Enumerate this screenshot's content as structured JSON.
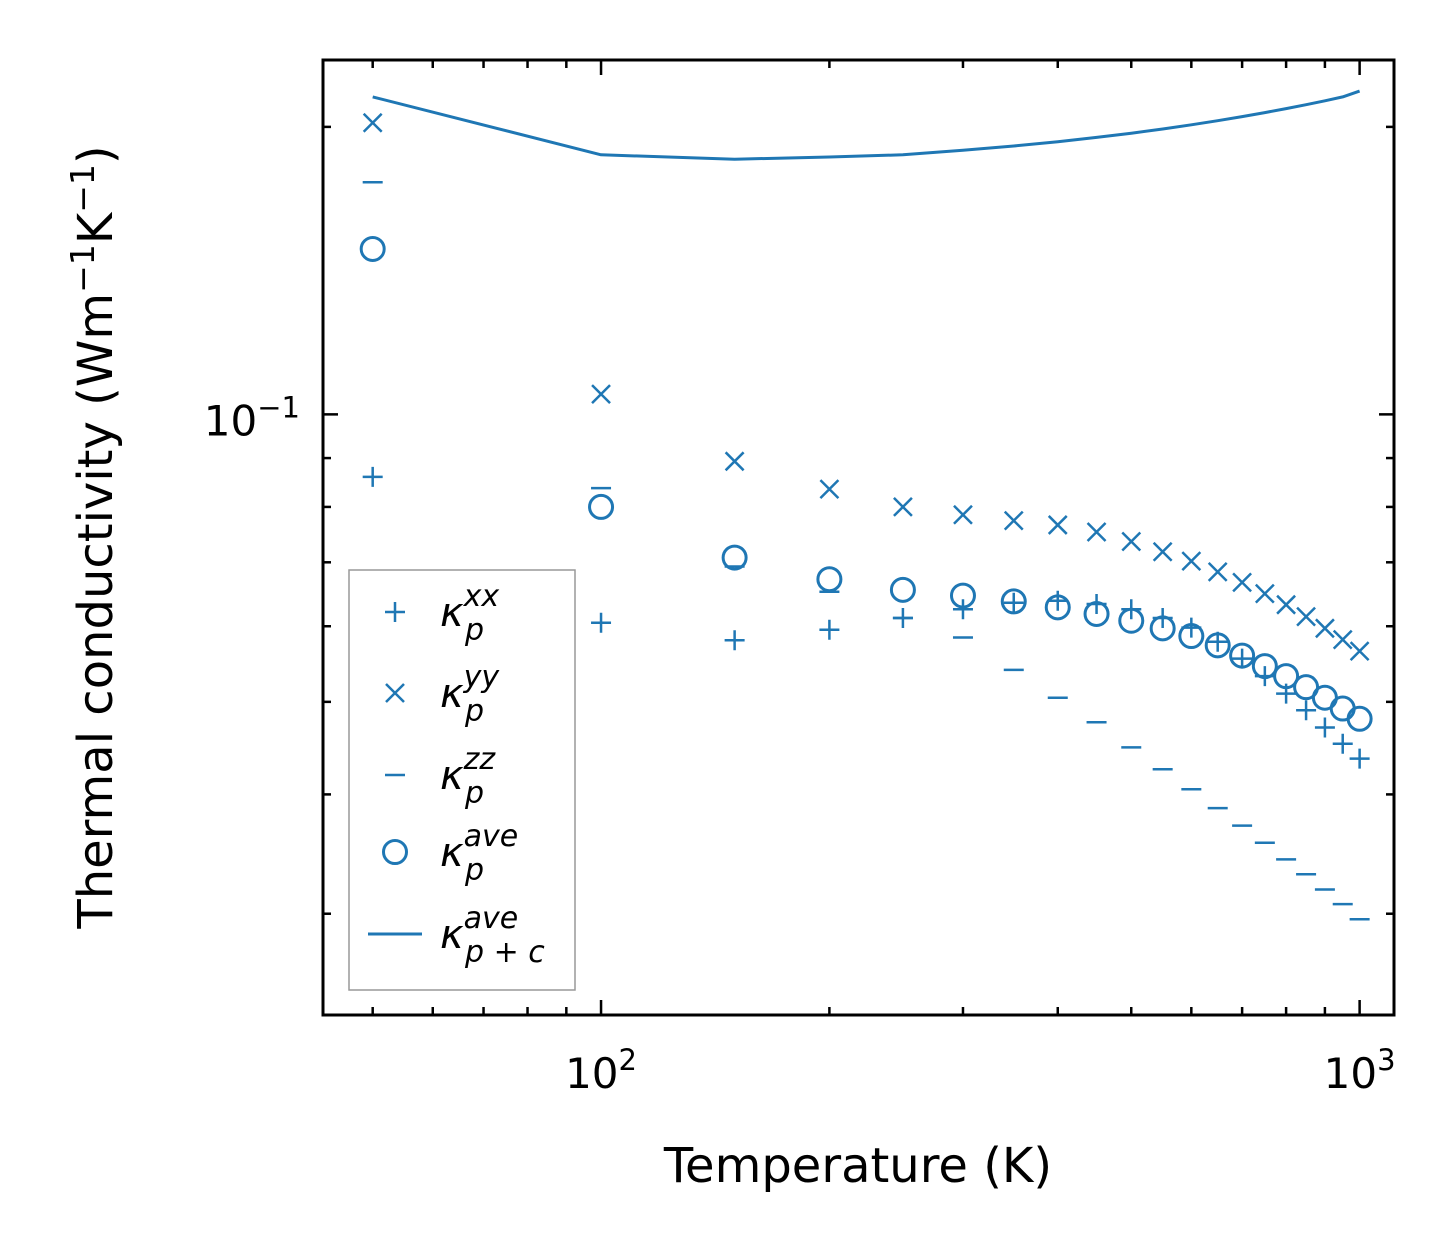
{
  "chart_data": {
    "type": "scatter",
    "title": "",
    "xlabel": "Temperature (K)",
    "ylabel_main": "Thermal conductivity (Wm",
    "ylabel_unit_w_exp": "−1",
    "ylabel_unit_k": "K",
    "ylabel_unit_k_exp": "−1",
    "ylabel_close": ")",
    "xscale": "log",
    "yscale": "log",
    "xlim": [
      43,
      1110
    ],
    "ylim": [
      0.0235,
      0.235
    ],
    "xticks": [
      {
        "value": 100,
        "base": "10",
        "exp": "2"
      },
      {
        "value": 1000,
        "base": "10",
        "exp": "3"
      }
    ],
    "yticks": [
      {
        "value": 0.1,
        "base": "10",
        "exp": "−1"
      }
    ],
    "grid": false,
    "legend_position": "lower-left",
    "color": "#1f77b4",
    "series": [
      {
        "name": "kxx",
        "label_base": "κ",
        "label_sub": "p",
        "label_sup": "xx",
        "marker": "plus",
        "x": [
          50,
          100,
          150,
          200,
          250,
          300,
          350,
          400,
          450,
          500,
          550,
          600,
          650,
          700,
          750,
          800,
          850,
          900,
          950,
          1000
        ],
        "y": [
          0.086,
          0.0605,
          0.058,
          0.0595,
          0.0612,
          0.0625,
          0.0635,
          0.0638,
          0.0633,
          0.0625,
          0.0612,
          0.0598,
          0.0578,
          0.0555,
          0.0532,
          0.051,
          0.049,
          0.047,
          0.0452,
          0.0436
        ]
      },
      {
        "name": "kyy",
        "label_base": "κ",
        "label_sub": "p",
        "label_sup": "yy",
        "marker": "x",
        "x": [
          50,
          100,
          150,
          200,
          250,
          300,
          350,
          400,
          450,
          500,
          550,
          600,
          650,
          700,
          750,
          800,
          850,
          900,
          950,
          1000
        ],
        "y": [
          0.202,
          0.105,
          0.0893,
          0.0835,
          0.08,
          0.0785,
          0.0774,
          0.0766,
          0.0753,
          0.0736,
          0.0718,
          0.0702,
          0.0684,
          0.0667,
          0.0649,
          0.0632,
          0.0614,
          0.0597,
          0.0581,
          0.0565
        ]
      },
      {
        "name": "kzz",
        "label_base": "κ",
        "label_sub": "p",
        "label_sup": "zz",
        "marker": "dash",
        "x": [
          50,
          100,
          150,
          200,
          250,
          300,
          350,
          400,
          450,
          500,
          550,
          600,
          650,
          700,
          750,
          800,
          850,
          900,
          950,
          1000
        ],
        "y": [
          0.175,
          0.0837,
          0.0693,
          0.0652,
          0.0612,
          0.0584,
          0.054,
          0.0505,
          0.0476,
          0.0448,
          0.0425,
          0.0405,
          0.0387,
          0.0371,
          0.0356,
          0.0342,
          0.033,
          0.0318,
          0.0307,
          0.0296
        ]
      },
      {
        "name": "kave",
        "label_base": "κ",
        "label_sub": "p",
        "label_sup": "ave",
        "marker": "circle",
        "x": [
          50,
          100,
          150,
          200,
          250,
          300,
          350,
          400,
          450,
          500,
          550,
          600,
          650,
          700,
          750,
          800,
          850,
          900,
          950,
          1000
        ],
        "y": [
          0.149,
          0.08,
          0.0708,
          0.0672,
          0.0655,
          0.0646,
          0.0637,
          0.0628,
          0.0618,
          0.0608,
          0.0597,
          0.0586,
          0.0573,
          0.0559,
          0.0545,
          0.0532,
          0.0518,
          0.0505,
          0.0492,
          0.048
        ]
      },
      {
        "name": "kave_pc",
        "label_base": "κ",
        "label_sub": "p + c",
        "label_sup": "ave",
        "marker": "line",
        "x": [
          50,
          100,
          150,
          200,
          250,
          300,
          350,
          400,
          450,
          500,
          550,
          600,
          650,
          700,
          750,
          800,
          850,
          900,
          950,
          1000
        ],
        "y": [
          0.215,
          0.187,
          0.185,
          0.186,
          0.187,
          0.189,
          0.191,
          0.193,
          0.195,
          0.197,
          0.199,
          0.201,
          0.203,
          0.205,
          0.207,
          0.209,
          0.211,
          0.213,
          0.215,
          0.218
        ]
      }
    ]
  }
}
